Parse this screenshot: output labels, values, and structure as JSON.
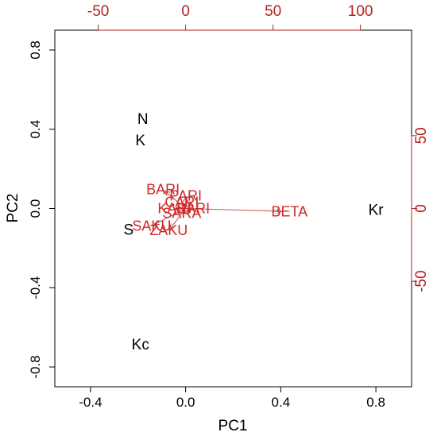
{
  "chart_data": {
    "type": "biplot",
    "xlabel": "PC1",
    "ylabel": "PC2",
    "xlim": [
      -0.55,
      0.95
    ],
    "ylim": [
      -0.9,
      0.9
    ],
    "x_ticks": [
      -0.4,
      0.0,
      0.4,
      0.8
    ],
    "x_tick_labels": [
      "-0.4",
      "0.0",
      "0.4",
      "0.8"
    ],
    "y_ticks": [
      -0.8,
      -0.4,
      0.0,
      0.4,
      0.8
    ],
    "y_tick_labels": [
      "-0.8",
      "-0.4",
      "0.0",
      "0.4",
      "0.8"
    ],
    "secondary_x_ticks": [
      -50,
      0,
      50,
      100
    ],
    "secondary_x_tick_labels": [
      "-50",
      "0",
      "50",
      "100"
    ],
    "secondary_y_ticks": [
      -50,
      0,
      50
    ],
    "secondary_y_tick_labels": [
      "-50",
      "0",
      "50"
    ],
    "secondary_scale": 0.00735,
    "observations": [
      {
        "label": "N",
        "x": -0.18,
        "y": 0.45
      },
      {
        "label": "K",
        "x": -0.19,
        "y": 0.34
      },
      {
        "label": "S",
        "x": -0.24,
        "y": -0.11
      },
      {
        "label": "Kr",
        "x": 0.8,
        "y": -0.01
      },
      {
        "label": "Kc",
        "x": -0.19,
        "y": -0.69
      }
    ],
    "variables": [
      {
        "label": "BETA",
        "x": 55,
        "y": -2
      },
      {
        "label": "BARI",
        "x": -12,
        "y": 12
      },
      {
        "label": "PARI",
        "x": 0,
        "y": 8
      },
      {
        "label": "CARI",
        "x": -2,
        "y": 4
      },
      {
        "label": "KARI",
        "x": -6,
        "y": 0
      },
      {
        "label": "SARI",
        "x": 4,
        "y": 0
      },
      {
        "label": "SARA",
        "x": -2,
        "y": -3
      },
      {
        "label": "SAKU",
        "x": -18,
        "y": -11
      },
      {
        "label": "ZAKU",
        "x": -9,
        "y": -14
      }
    ],
    "colors": {
      "observations": "#000000",
      "variables": "#d02828",
      "arrows": "#c0504d"
    }
  }
}
